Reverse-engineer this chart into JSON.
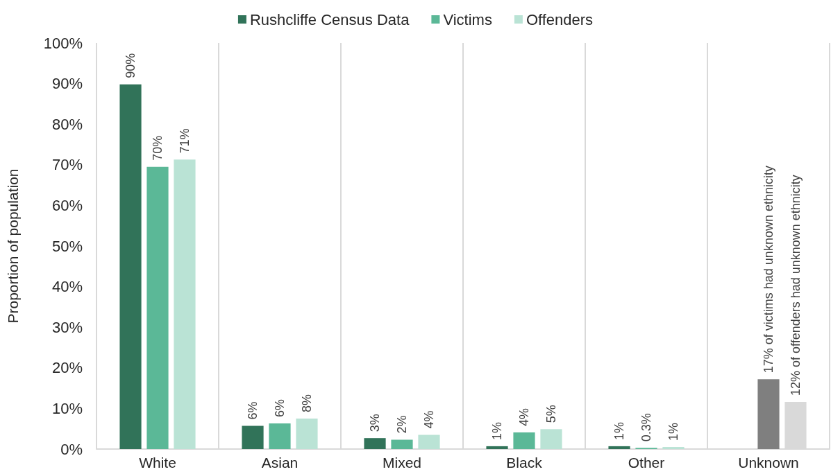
{
  "chart_data": {
    "type": "bar",
    "ylabel": "Proportion of population",
    "categories": [
      "White",
      "Asian",
      "Mixed",
      "Black",
      "Other",
      "Unknown"
    ],
    "series": [
      {
        "name": "Rushcliffe Census Data",
        "color": "#317359",
        "values": [
          89.8,
          5.7,
          2.7,
          0.7,
          0.7,
          null
        ],
        "value_labels": [
          "90%",
          "6%",
          "3%",
          "1%",
          "1%",
          null
        ]
      },
      {
        "name": "Victims",
        "color": "#5bb897",
        "colors": [
          "#5bb897",
          "#5bb897",
          "#5bb897",
          "#5bb897",
          "#5bb897",
          "#7f7f7f"
        ],
        "values": [
          69.5,
          6.3,
          2.3,
          4.1,
          0.3,
          17.2
        ],
        "value_labels": [
          "70%",
          "6%",
          "2%",
          "4%",
          "0.3%",
          "17% of victims had unknown ethnicity"
        ]
      },
      {
        "name": "Offenders",
        "color": "#bae3d5",
        "colors": [
          "#bae3d5",
          "#bae3d5",
          "#bae3d5",
          "#bae3d5",
          "#bae3d5",
          "#d9d9d9"
        ],
        "values": [
          71.3,
          7.5,
          3.5,
          4.9,
          0.5,
          11.6
        ],
        "value_labels": [
          "71%",
          "8%",
          "4%",
          "5%",
          "1%",
          "12% of offenders had unknown ethnicity"
        ]
      }
    ],
    "ylim": [
      0,
      100
    ],
    "yticks": [
      {
        "value": 0,
        "label": "0%"
      },
      {
        "value": 10,
        "label": "10%"
      },
      {
        "value": 20,
        "label": "20%"
      },
      {
        "value": 30,
        "label": "30%"
      },
      {
        "value": 40,
        "label": "40%"
      },
      {
        "value": 50,
        "label": "50%"
      },
      {
        "value": 60,
        "label": "60%"
      },
      {
        "value": 70,
        "label": "70%"
      },
      {
        "value": 80,
        "label": "80%"
      },
      {
        "value": 90,
        "label": "90%"
      },
      {
        "value": 100,
        "label": "100%"
      }
    ],
    "grid": "x",
    "legend": "top"
  }
}
